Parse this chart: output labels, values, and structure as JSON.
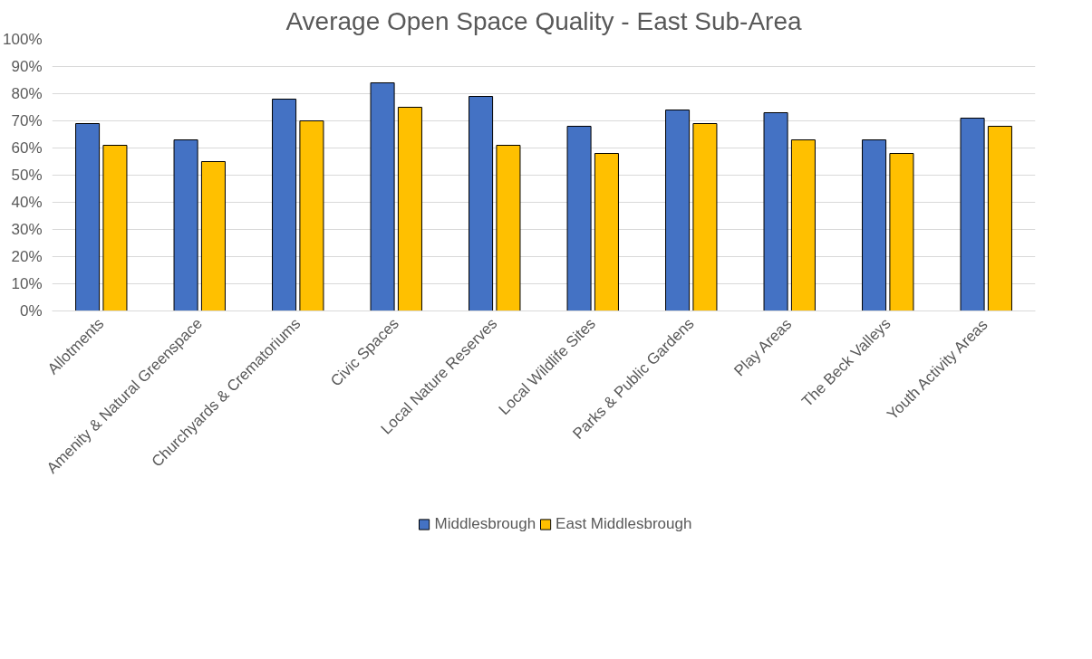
{
  "chart_data": {
    "type": "bar",
    "title": "Average Open Space Quality - East Sub-Area",
    "categories": [
      "Allotments",
      "Amenity & Natural Greenspace",
      "Churchyards & Crematoriums",
      "Civic Spaces",
      "Local Nature Reserves",
      "Local Wildlife Sites",
      "Parks & Public Gardens",
      "Play Areas",
      "The Beck Valleys",
      "Youth Activity Areas"
    ],
    "series": [
      {
        "name": "Middlesbrough",
        "color": "#4472c4",
        "values": [
          69,
          63,
          78,
          84,
          79,
          68,
          74,
          73,
          63,
          71
        ]
      },
      {
        "name": "East Middlesbrough",
        "color": "#ffc000",
        "values": [
          61,
          55,
          70,
          75,
          61,
          58,
          69,
          63,
          58,
          68
        ]
      }
    ],
    "ylim": [
      0,
      100
    ],
    "yticks": [
      {
        "value": 0,
        "label": "0%"
      },
      {
        "value": 10,
        "label": "10%"
      },
      {
        "value": 20,
        "label": "20%"
      },
      {
        "value": 30,
        "label": "30%"
      },
      {
        "value": 40,
        "label": "40%"
      },
      {
        "value": 50,
        "label": "50%"
      },
      {
        "value": 60,
        "label": "60%"
      },
      {
        "value": 70,
        "label": "70%"
      },
      {
        "value": 80,
        "label": "80%"
      },
      {
        "value": 90,
        "label": "90%"
      },
      {
        "value": 100,
        "label": "100%"
      }
    ],
    "grid": "y",
    "legend": "bottom"
  }
}
